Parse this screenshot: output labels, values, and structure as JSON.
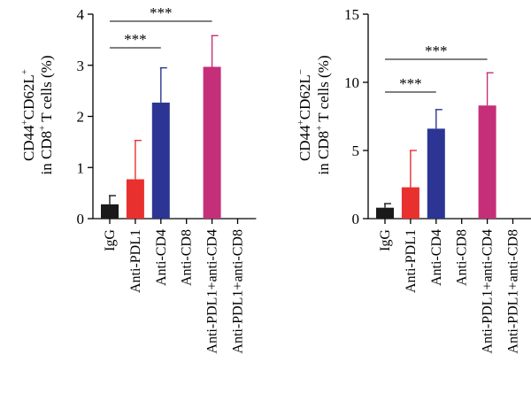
{
  "chart_data": [
    {
      "type": "bar",
      "categories": [
        "IgG",
        "Anti-PDL1",
        "Anti-CD4",
        "Anti-CD8",
        "Anti-PDL1+anti-CD4",
        "Anti-PDL1+anti-CD8"
      ],
      "values": [
        0.28,
        0.77,
        2.27,
        0,
        2.97,
        0
      ],
      "errors": [
        0.17,
        0.76,
        0.68,
        0,
        0.61,
        0
      ],
      "colors": [
        "#1a1a1a",
        "#e8302f",
        "#2c3593",
        "#ffffff",
        "#c52f79",
        "#ffffff"
      ],
      "ylabel_line1": {
        "base": "CD44",
        "sup1": "+",
        "mid": "CD62L",
        "sup2": "+"
      },
      "ylabel_line2": {
        "pre": "in CD8",
        "sup": "+",
        "post": " T cells (%)"
      },
      "ylim": [
        0,
        4
      ],
      "yticks": [
        0,
        1,
        2,
        3,
        4
      ],
      "significance": [
        {
          "from": 0,
          "to": 2,
          "label": "***"
        },
        {
          "from": 0,
          "to": 4,
          "label": "***"
        }
      ]
    },
    {
      "type": "bar",
      "categories": [
        "IgG",
        "Anti-PDL1",
        "Anti-CD4",
        "Anti-CD8",
        "Anti-PDL1+anti-CD4",
        "Anti-PDL1+anti-CD8"
      ],
      "values": [
        0.8,
        2.3,
        6.6,
        0,
        8.3,
        0
      ],
      "errors": [
        0.3,
        2.7,
        1.4,
        0,
        2.4,
        0
      ],
      "colors": [
        "#1a1a1a",
        "#e8302f",
        "#2c3593",
        "#ffffff",
        "#c52f79",
        "#ffffff"
      ],
      "ylabel_line1": {
        "base": "CD44",
        "sup1": "+",
        "mid": "CD62L",
        "sup2": "−"
      },
      "ylabel_line2": {
        "pre": "in CD8",
        "sup": "+",
        "post": " T cells (%)"
      },
      "ylim": [
        0,
        15
      ],
      "yticks": [
        0,
        5,
        10,
        15
      ],
      "significance": [
        {
          "from": 0,
          "to": 2,
          "label": "***"
        },
        {
          "from": 0,
          "to": 4,
          "label": "***"
        }
      ]
    }
  ]
}
